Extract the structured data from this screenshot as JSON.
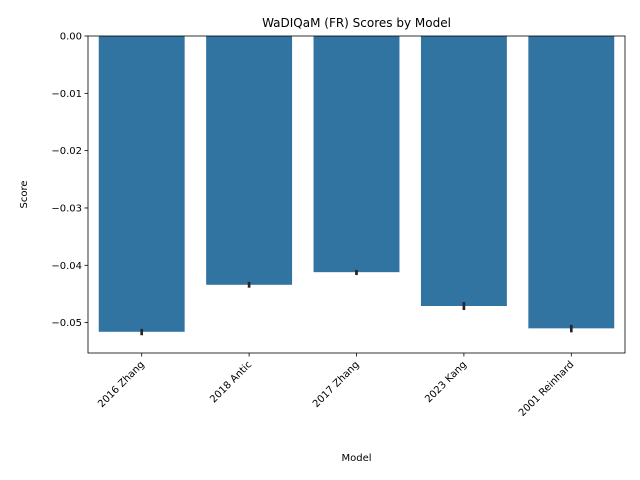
{
  "chart_data": {
    "type": "bar",
    "title": "WaDIQaM (FR) Scores by Model",
    "xlabel": "Model",
    "ylabel": "Score",
    "categories": [
      "2016 Zhang",
      "2018 Antic",
      "2017 Zhang",
      "2023 Kang",
      "2001 Reinhard"
    ],
    "values": [
      -0.0516,
      -0.0434,
      -0.0412,
      -0.0471,
      -0.051
    ],
    "error_low": [
      -0.0522,
      -0.0439,
      -0.0417,
      -0.0478,
      -0.0517
    ],
    "error_high": [
      -0.0511,
      -0.0429,
      -0.0408,
      -0.0464,
      -0.0504
    ],
    "ylim": [
      -0.0553,
      0.0
    ],
    "yticks": [
      0.0,
      -0.01,
      -0.02,
      -0.03,
      -0.04,
      -0.05
    ],
    "ytick_labels": [
      "0.00",
      "−0.01",
      "−0.02",
      "−0.03",
      "−0.04",
      "−0.05"
    ],
    "grid": false,
    "bar_color": "#3274a1",
    "error_color": "#262626"
  }
}
